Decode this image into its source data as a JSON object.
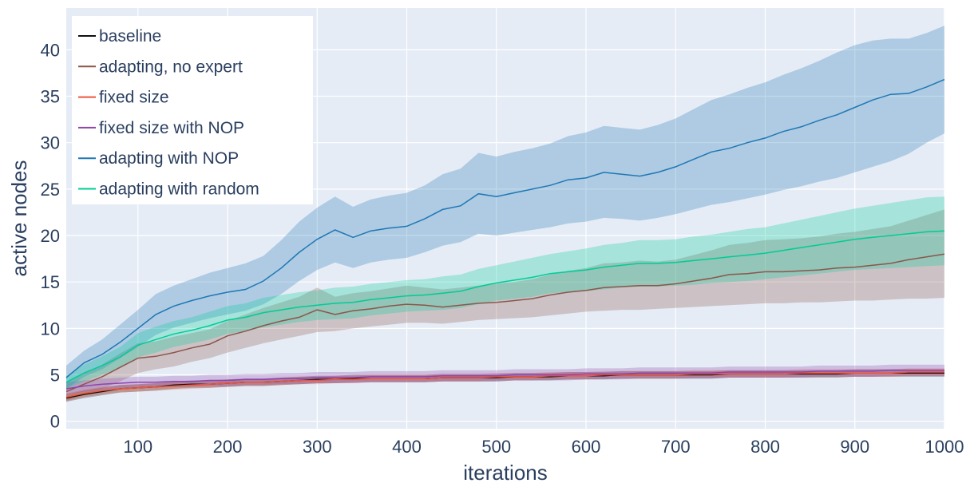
{
  "chart_data": {
    "type": "line",
    "xlabel": "iterations",
    "ylabel": "active nodes",
    "xlim": [
      20,
      1000
    ],
    "ylim": [
      -0.8,
      44.5
    ],
    "x_ticks": [
      100,
      200,
      300,
      400,
      500,
      600,
      700,
      800,
      900,
      1000
    ],
    "y_ticks": [
      0,
      5,
      10,
      15,
      20,
      25,
      30,
      35,
      40
    ],
    "grid": true,
    "legend_position": "top-left",
    "plot_bgcolor": "#e5ecf6",
    "x": [
      20,
      40,
      60,
      80,
      100,
      120,
      140,
      160,
      180,
      200,
      220,
      240,
      260,
      280,
      300,
      320,
      340,
      360,
      380,
      400,
      420,
      440,
      460,
      480,
      500,
      520,
      540,
      560,
      580,
      600,
      620,
      640,
      660,
      680,
      700,
      720,
      740,
      760,
      780,
      800,
      820,
      840,
      860,
      880,
      900,
      920,
      940,
      960,
      980,
      1000
    ],
    "series": [
      {
        "name": "baseline",
        "color": "#111111",
        "y": [
          2.5,
          2.9,
          3.2,
          3.5,
          3.6,
          3.7,
          3.9,
          4.0,
          4.0,
          4.1,
          4.2,
          4.2,
          4.3,
          4.4,
          4.5,
          4.5,
          4.6,
          4.6,
          4.6,
          4.6,
          4.6,
          4.7,
          4.7,
          4.7,
          4.7,
          4.8,
          4.8,
          4.8,
          4.9,
          4.9,
          4.9,
          5.0,
          5.0,
          5.0,
          5.0,
          5.0,
          5.0,
          5.1,
          5.1,
          5.1,
          5.1,
          5.1,
          5.1,
          5.1,
          5.2,
          5.2,
          5.2,
          5.2,
          5.2,
          5.2
        ],
        "lower": [
          2.1,
          2.5,
          2.8,
          3.1,
          3.2,
          3.3,
          3.5,
          3.6,
          3.6,
          3.7,
          3.8,
          3.8,
          3.9,
          4.0,
          4.1,
          4.1,
          4.2,
          4.2,
          4.2,
          4.2,
          4.2,
          4.3,
          4.3,
          4.3,
          4.3,
          4.4,
          4.4,
          4.4,
          4.5,
          4.5,
          4.5,
          4.6,
          4.6,
          4.6,
          4.6,
          4.6,
          4.6,
          4.7,
          4.7,
          4.7,
          4.7,
          4.7,
          4.7,
          4.7,
          4.8,
          4.8,
          4.8,
          4.8,
          4.8,
          4.8
        ],
        "upper": [
          2.9,
          3.3,
          3.6,
          3.9,
          4.0,
          4.1,
          4.3,
          4.4,
          4.4,
          4.5,
          4.6,
          4.6,
          4.7,
          4.8,
          4.9,
          4.9,
          5.0,
          5.0,
          5.0,
          5.0,
          5.0,
          5.1,
          5.1,
          5.1,
          5.1,
          5.2,
          5.2,
          5.2,
          5.3,
          5.3,
          5.3,
          5.4,
          5.4,
          5.4,
          5.4,
          5.4,
          5.4,
          5.5,
          5.5,
          5.5,
          5.5,
          5.5,
          5.5,
          5.5,
          5.6,
          5.6,
          5.6,
          5.6,
          5.6,
          5.6
        ]
      },
      {
        "name": "adapting, no expert",
        "color": "#8c564b",
        "y": [
          3.2,
          4.0,
          4.8,
          5.8,
          6.8,
          7.0,
          7.4,
          7.9,
          8.3,
          9.2,
          9.7,
          10.3,
          10.8,
          11.2,
          12.0,
          11.5,
          11.9,
          12.1,
          12.4,
          12.6,
          12.5,
          12.3,
          12.5,
          12.7,
          12.8,
          13.0,
          13.2,
          13.6,
          13.9,
          14.1,
          14.4,
          14.5,
          14.6,
          14.6,
          14.8,
          15.1,
          15.4,
          15.8,
          15.9,
          16.1,
          16.1,
          16.2,
          16.3,
          16.5,
          16.6,
          16.8,
          17.0,
          17.4,
          17.7,
          18.0
        ],
        "lower": [
          2.2,
          2.8,
          3.5,
          4.3,
          5.2,
          5.6,
          5.9,
          6.4,
          6.8,
          7.4,
          7.9,
          8.4,
          8.8,
          9.2,
          9.6,
          9.7,
          10.0,
          10.2,
          10.4,
          10.6,
          10.6,
          10.5,
          10.7,
          10.9,
          11.0,
          11.1,
          11.2,
          11.4,
          11.6,
          11.8,
          11.9,
          12.0,
          12.0,
          12.1,
          12.2,
          12.3,
          12.4,
          12.5,
          12.6,
          12.7,
          12.7,
          12.8,
          12.8,
          12.9,
          13.0,
          13.0,
          13.1,
          13.2,
          13.2,
          13.3
        ],
        "upper": [
          4.2,
          5.2,
          6.1,
          7.3,
          8.4,
          8.6,
          9.1,
          9.5,
          9.9,
          10.8,
          11.5,
          12.2,
          12.8,
          13.4,
          14.4,
          13.4,
          13.8,
          14.0,
          14.3,
          14.6,
          14.4,
          14.2,
          14.4,
          14.6,
          14.8,
          15.0,
          15.3,
          15.8,
          16.2,
          16.5,
          17.0,
          17.1,
          17.3,
          17.2,
          17.4,
          17.9,
          18.4,
          19.0,
          19.2,
          19.5,
          19.6,
          19.7,
          19.9,
          20.2,
          20.4,
          20.7,
          21.0,
          21.6,
          22.2,
          22.8
        ]
      },
      {
        "name": "fixed size",
        "color": "#ef553b",
        "y": [
          2.6,
          3.0,
          3.3,
          3.5,
          3.6,
          3.7,
          3.8,
          3.9,
          4.0,
          4.1,
          4.2,
          4.2,
          4.3,
          4.4,
          4.4,
          4.5,
          4.5,
          4.6,
          4.6,
          4.6,
          4.6,
          4.7,
          4.7,
          4.7,
          4.8,
          4.8,
          4.8,
          4.9,
          4.9,
          4.9,
          5.0,
          5.0,
          5.0,
          5.0,
          5.0,
          5.1,
          5.1,
          5.1,
          5.1,
          5.1,
          5.1,
          5.2,
          5.2,
          5.2,
          5.2,
          5.2,
          5.2,
          5.3,
          5.3,
          5.3
        ],
        "lower": [
          2.2,
          2.6,
          2.9,
          3.1,
          3.2,
          3.3,
          3.4,
          3.5,
          3.6,
          3.7,
          3.8,
          3.8,
          3.9,
          4.0,
          4.0,
          4.1,
          4.1,
          4.2,
          4.2,
          4.2,
          4.2,
          4.3,
          4.3,
          4.3,
          4.4,
          4.4,
          4.4,
          4.5,
          4.5,
          4.5,
          4.6,
          4.6,
          4.6,
          4.6,
          4.6,
          4.7,
          4.7,
          4.7,
          4.7,
          4.7,
          4.7,
          4.8,
          4.8,
          4.8,
          4.8,
          4.8,
          4.8,
          4.9,
          4.9,
          4.9
        ],
        "upper": [
          3.0,
          3.4,
          3.7,
          3.9,
          4.0,
          4.1,
          4.2,
          4.3,
          4.4,
          4.5,
          4.6,
          4.6,
          4.7,
          4.8,
          4.8,
          4.9,
          4.9,
          5.0,
          5.0,
          5.0,
          5.0,
          5.1,
          5.1,
          5.1,
          5.2,
          5.2,
          5.2,
          5.3,
          5.3,
          5.3,
          5.4,
          5.4,
          5.4,
          5.4,
          5.4,
          5.5,
          5.5,
          5.5,
          5.5,
          5.5,
          5.5,
          5.6,
          5.6,
          5.6,
          5.6,
          5.6,
          5.6,
          5.7,
          5.7,
          5.7
        ]
      },
      {
        "name": "fixed size with NOP",
        "color": "#8e44ad",
        "y": [
          3.5,
          3.8,
          4.0,
          4.1,
          4.2,
          4.2,
          4.3,
          4.3,
          4.4,
          4.4,
          4.5,
          4.5,
          4.6,
          4.6,
          4.7,
          4.7,
          4.7,
          4.8,
          4.8,
          4.8,
          4.8,
          4.9,
          4.9,
          4.9,
          4.9,
          5.0,
          5.0,
          5.0,
          5.0,
          5.1,
          5.1,
          5.1,
          5.2,
          5.2,
          5.2,
          5.2,
          5.2,
          5.3,
          5.3,
          5.3,
          5.3,
          5.3,
          5.4,
          5.4,
          5.4,
          5.4,
          5.5,
          5.5,
          5.5,
          5.5
        ],
        "lower": [
          2.8,
          3.2,
          3.4,
          3.5,
          3.6,
          3.6,
          3.7,
          3.7,
          3.8,
          3.8,
          3.9,
          3.9,
          4.0,
          4.0,
          4.1,
          4.1,
          4.1,
          4.2,
          4.2,
          4.2,
          4.2,
          4.3,
          4.3,
          4.3,
          4.3,
          4.4,
          4.4,
          4.4,
          4.4,
          4.5,
          4.5,
          4.5,
          4.6,
          4.6,
          4.6,
          4.6,
          4.6,
          4.7,
          4.7,
          4.7,
          4.7,
          4.7,
          4.8,
          4.8,
          4.8,
          4.8,
          4.9,
          4.9,
          4.9,
          4.9
        ],
        "upper": [
          4.2,
          4.4,
          4.6,
          4.7,
          4.8,
          4.8,
          4.9,
          4.9,
          5.0,
          5.0,
          5.1,
          5.1,
          5.2,
          5.2,
          5.3,
          5.3,
          5.3,
          5.4,
          5.4,
          5.4,
          5.4,
          5.5,
          5.5,
          5.5,
          5.5,
          5.6,
          5.6,
          5.6,
          5.6,
          5.7,
          5.7,
          5.7,
          5.8,
          5.8,
          5.8,
          5.8,
          5.8,
          5.9,
          5.9,
          5.9,
          5.9,
          5.9,
          6.0,
          6.0,
          6.0,
          6.0,
          6.1,
          6.1,
          6.1,
          6.1
        ]
      },
      {
        "name": "adapting with NOP",
        "color": "#1f77b4",
        "y": [
          4.7,
          6.3,
          7.2,
          8.5,
          10.0,
          11.5,
          12.4,
          13.0,
          13.5,
          13.9,
          14.2,
          15.1,
          16.5,
          18.2,
          19.6,
          20.6,
          19.8,
          20.5,
          20.8,
          21.0,
          21.8,
          22.8,
          23.2,
          24.5,
          24.2,
          24.6,
          25.0,
          25.4,
          26.0,
          26.2,
          26.8,
          26.6,
          26.4,
          26.8,
          27.4,
          28.2,
          29.0,
          29.4,
          30.0,
          30.5,
          31.2,
          31.7,
          32.4,
          33.0,
          33.8,
          34.6,
          35.2,
          35.3,
          36.0,
          36.8
        ],
        "lower": [
          3.5,
          4.8,
          5.6,
          6.8,
          8.0,
          9.3,
          10.1,
          10.6,
          11.1,
          11.5,
          11.9,
          12.6,
          13.7,
          15.1,
          16.3,
          17.1,
          16.5,
          17.1,
          17.4,
          17.6,
          18.2,
          18.9,
          19.3,
          20.2,
          20.0,
          20.3,
          20.6,
          20.9,
          21.3,
          21.5,
          21.9,
          21.8,
          21.6,
          21.9,
          22.3,
          22.8,
          23.3,
          23.6,
          24.0,
          24.4,
          24.9,
          25.3,
          25.8,
          26.2,
          26.8,
          27.4,
          28.0,
          28.8,
          30.0,
          31.0
        ],
        "upper": [
          6.0,
          7.6,
          8.8,
          10.4,
          12.0,
          13.7,
          14.6,
          15.3,
          16.0,
          16.5,
          17.0,
          17.8,
          19.5,
          21.5,
          23.0,
          24.2,
          23.1,
          23.9,
          24.3,
          24.6,
          25.4,
          26.6,
          27.2,
          28.9,
          28.5,
          29.0,
          29.4,
          29.9,
          30.7,
          31.1,
          31.8,
          31.6,
          31.4,
          31.9,
          32.6,
          33.6,
          34.6,
          35.2,
          35.9,
          36.5,
          37.3,
          38.0,
          38.8,
          39.7,
          40.5,
          41.0,
          41.2,
          41.2,
          41.8,
          42.6
        ]
      },
      {
        "name": "adapting with random",
        "color": "#00cc96",
        "y": [
          4.2,
          5.2,
          6.0,
          6.9,
          8.2,
          8.8,
          9.4,
          9.8,
          10.3,
          10.9,
          11.2,
          11.7,
          12.0,
          12.3,
          12.5,
          12.7,
          12.8,
          13.1,
          13.3,
          13.5,
          13.6,
          13.8,
          14.0,
          14.5,
          14.9,
          15.2,
          15.5,
          15.9,
          16.1,
          16.3,
          16.6,
          16.8,
          17.0,
          17.0,
          17.1,
          17.3,
          17.5,
          17.7,
          17.9,
          18.1,
          18.4,
          18.7,
          19.0,
          19.3,
          19.6,
          19.8,
          20.0,
          20.2,
          20.4,
          20.5
        ],
        "lower": [
          3.5,
          4.3,
          5.0,
          5.8,
          6.9,
          7.4,
          8.0,
          8.4,
          8.8,
          9.4,
          9.7,
          10.1,
          10.4,
          10.7,
          10.9,
          11.0,
          11.1,
          11.4,
          11.6,
          11.8,
          11.9,
          12.0,
          12.2,
          12.6,
          13.0,
          13.2,
          13.4,
          13.8,
          13.9,
          14.0,
          14.2,
          14.4,
          14.5,
          14.5,
          14.6,
          14.7,
          14.9,
          15.0,
          15.1,
          15.3,
          15.5,
          15.7,
          15.9,
          16.1,
          16.3,
          16.4,
          16.5,
          16.6,
          16.7,
          16.8
        ],
        "upper": [
          4.9,
          6.1,
          7.0,
          8.0,
          9.5,
          10.2,
          10.8,
          11.2,
          11.8,
          12.4,
          12.7,
          13.3,
          13.6,
          13.9,
          14.1,
          14.4,
          14.5,
          14.8,
          15.0,
          15.2,
          15.3,
          15.6,
          15.8,
          16.4,
          16.8,
          17.2,
          17.6,
          18.0,
          18.3,
          18.6,
          19.0,
          19.2,
          19.5,
          19.5,
          19.6,
          19.9,
          20.1,
          20.4,
          20.7,
          20.9,
          21.3,
          21.7,
          22.1,
          22.5,
          22.9,
          23.2,
          23.5,
          23.8,
          24.1,
          24.2
        ]
      }
    ]
  }
}
